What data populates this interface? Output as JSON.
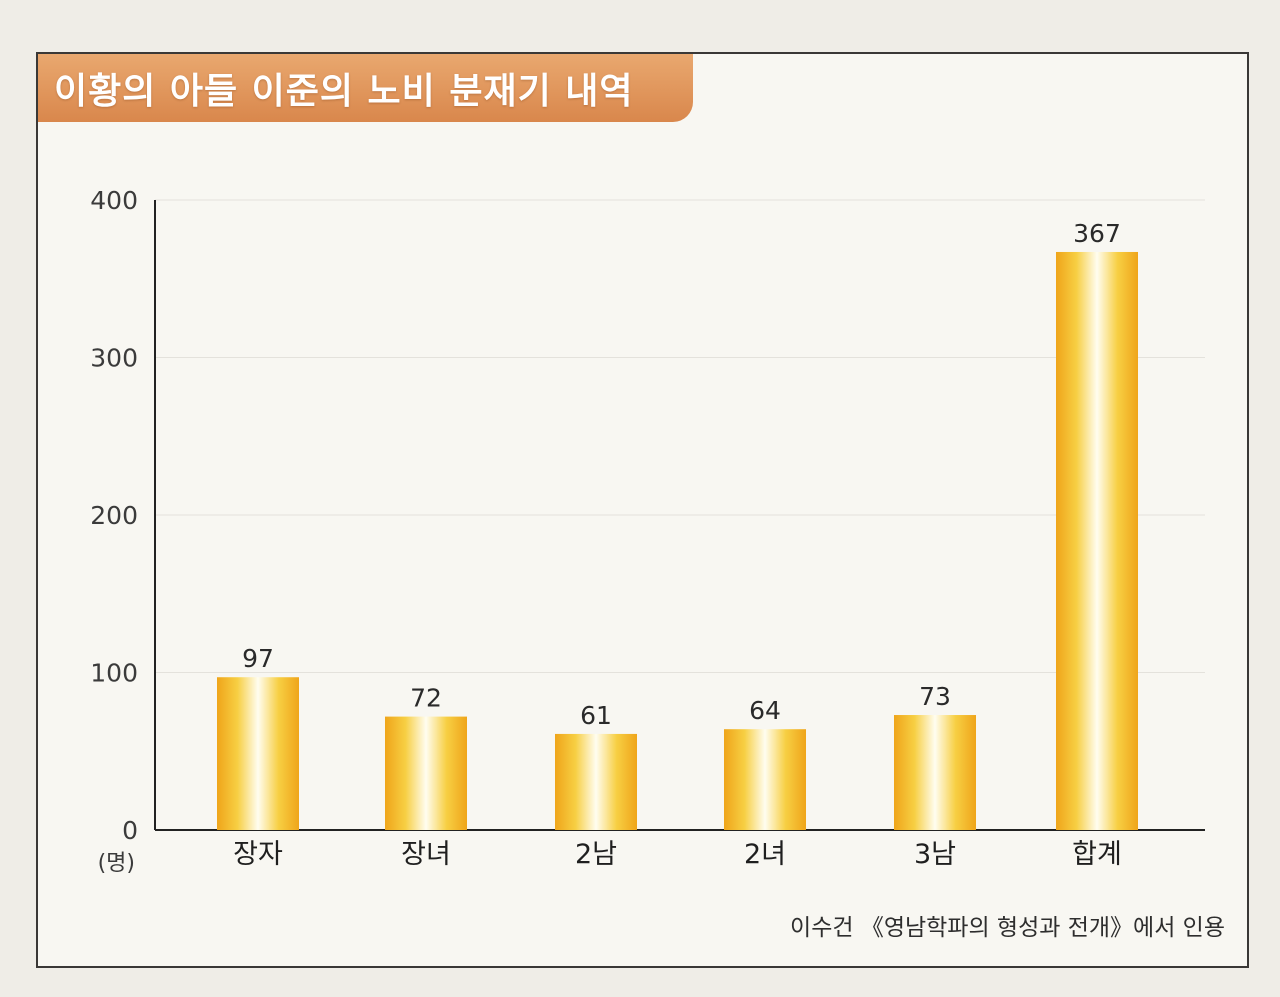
{
  "chart_data": {
    "type": "bar",
    "title": "이황의 아들 이준의 노비 분재기 내역",
    "categories": [
      "장자",
      "장녀",
      "2남",
      "2녀",
      "3남",
      "합계"
    ],
    "values": [
      97,
      72,
      61,
      64,
      73,
      367
    ],
    "ylim": [
      0,
      400
    ],
    "yticks": [
      0,
      100,
      200,
      300,
      400
    ],
    "ylabel": "(명)",
    "grid": true,
    "legend": "none",
    "bar_color": "#f2b51f",
    "source": "이수건 《영남학파의 형성과 전개》에서 인용"
  }
}
